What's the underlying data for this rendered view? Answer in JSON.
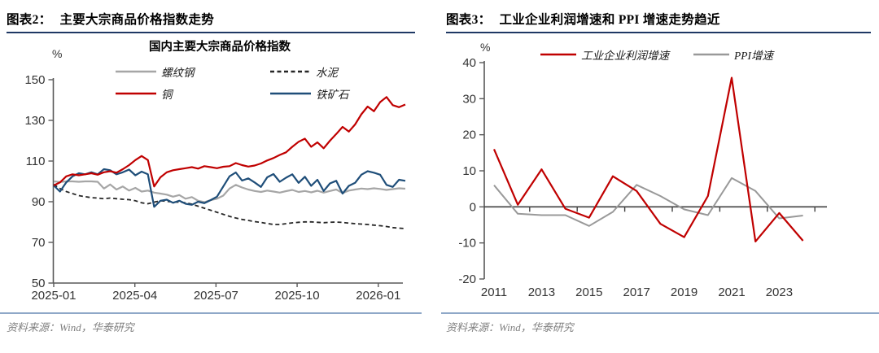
{
  "colors": {
    "copper_red": "#C00000",
    "iron_blue": "#1F4E79",
    "rebar_gray": "#A6A6A6",
    "cement_black": "#262626",
    "ppi_gray": "#999999",
    "axis": "#595959",
    "zero_axis": "#404040",
    "header_underline": "#1F3864",
    "source_divider": "#8FA8C8",
    "source_text": "#808080"
  },
  "fig2": {
    "header_label": "图表2：",
    "header_title": "主要大宗商品价格指数走势",
    "source": "资料来源：Wind，华泰研究",
    "chart_data": {
      "type": "line",
      "title": "国内主要大宗商品价格指数",
      "ylabel": "%",
      "ylim": [
        50,
        150
      ],
      "yticks": [
        50,
        70,
        90,
        110,
        130,
        150
      ],
      "grid": false,
      "legend_position": "top",
      "xticks": [
        {
          "label": "2025-01",
          "pos": 0.0
        },
        {
          "label": "2025-04",
          "pos": 0.2308
        },
        {
          "label": "2025-07",
          "pos": 0.4615
        },
        {
          "label": "2025-10",
          "pos": 0.6923
        },
        {
          "label": "2026-01",
          "pos": 0.9231
        }
      ],
      "x_range_note": "weekly samples, 2025-01 to 2026-01",
      "series": [
        {
          "name": "螺纹钢",
          "color": "#A6A6A6",
          "dash": "",
          "width": 2.2,
          "values": [
            100,
            99.7,
            100,
            100,
            99.8,
            100,
            100,
            99.8,
            96.5,
            98.5,
            96,
            97.5,
            95.5,
            96.8,
            95,
            95.5,
            94.5,
            94,
            93.5,
            92.5,
            93.3,
            91.5,
            92.3,
            90.5,
            89.8,
            90.8,
            91.5,
            93,
            96.5,
            98.3,
            97,
            96,
            95.3,
            94.8,
            95.5,
            95,
            94.5,
            95.2,
            95.8,
            94.8,
            95.3,
            94.6,
            95.4,
            94.5,
            95.3,
            96,
            94.3,
            95.5,
            96,
            96.5,
            96.2,
            96.6,
            96.3,
            95.8,
            96.2,
            96.6,
            96.4
          ]
        },
        {
          "name": "水泥",
          "color": "#262626",
          "dash": "5,3.5",
          "width": 1.8,
          "values": [
            98.5,
            96.5,
            95,
            94,
            93,
            92.5,
            92,
            91.8,
            91.5,
            91.8,
            91.5,
            91.2,
            91,
            90.5,
            89.5,
            89,
            89.8,
            90.5,
            90.2,
            89.8,
            89.8,
            89.5,
            88.8,
            87.8,
            86.8,
            85.8,
            84.8,
            83.8,
            82.8,
            82,
            81.3,
            80.8,
            80.2,
            79.8,
            79.3,
            78.8,
            78.8,
            79.2,
            79.6,
            79.9,
            80.1,
            80.1,
            79.9,
            79.7,
            79.9,
            80,
            79.8,
            79.5,
            79.2,
            79,
            78.8,
            78.5,
            78.2,
            77.8,
            77.3,
            77,
            76.8
          ]
        },
        {
          "name": "铜",
          "color": "#C00000",
          "dash": "",
          "width": 2.2,
          "values": [
            98,
            99.5,
            102.5,
            103.5,
            103,
            103.5,
            104,
            103.3,
            104.5,
            105,
            104.3,
            106,
            108,
            110.5,
            112.5,
            110.5,
            97.5,
            102,
            104.5,
            105.5,
            106,
            106.5,
            107,
            106.3,
            107.5,
            107,
            106.5,
            107.2,
            107.5,
            109,
            108,
            107.3,
            107.8,
            108.8,
            110.3,
            111.5,
            113,
            114.3,
            117,
            119.5,
            121,
            117,
            119.2,
            116.3,
            120,
            123.3,
            126.8,
            124.5,
            128,
            133,
            136.8,
            134.5,
            139,
            141.5,
            137.5,
            136.5,
            137.8
          ]
        },
        {
          "name": "铁矿石",
          "color": "#1F4E79",
          "dash": "",
          "width": 2.2,
          "values": [
            98,
            95,
            99.5,
            102.5,
            104,
            103.5,
            104.5,
            103.5,
            106,
            105.5,
            103.5,
            104.5,
            105.8,
            103,
            104.8,
            103.5,
            87.5,
            90.5,
            91,
            89.5,
            90.5,
            89,
            88.5,
            90,
            89.3,
            90.8,
            92.5,
            97.5,
            102.5,
            104.4,
            100.4,
            101.5,
            99.5,
            97.3,
            102,
            103.6,
            99.8,
            101.8,
            103.5,
            99.3,
            102.3,
            97.8,
            100.8,
            95.3,
            99,
            100.3,
            94,
            97.8,
            99.3,
            103.3,
            105,
            104.3,
            103.3,
            98.3,
            97.3,
            100.8,
            100.3
          ]
        }
      ]
    }
  },
  "fig3": {
    "header_label": "图表3：",
    "header_title": "工业企业利润增速和 PPI 增速走势趋近",
    "source": "资料来源：Wind，华泰研究",
    "chart_data": {
      "type": "line",
      "title": "",
      "ylabel": "%",
      "ylim": [
        -20,
        40
      ],
      "yticks": [
        -20,
        -10,
        0,
        10,
        20,
        30,
        40
      ],
      "grid": false,
      "legend_position": "top",
      "zero_axis": true,
      "categories": [
        "2011",
        "2012",
        "2013",
        "2014",
        "2015",
        "2016",
        "2017",
        "2018",
        "2019",
        "2020",
        "2021",
        "2022",
        "2023",
        "2024"
      ],
      "xtick_labels": [
        "2011",
        "2013",
        "2015",
        "2017",
        "2019",
        "2021",
        "2023"
      ],
      "series": [
        {
          "name": "工业企业利润增速",
          "color": "#C00000",
          "dash": "",
          "width": 2.2,
          "values": [
            16,
            0.6,
            10.4,
            -0.5,
            -3.0,
            8.5,
            4.4,
            -4.7,
            -8.4,
            3.0,
            35.8,
            -9.6,
            -1.7,
            -9.4
          ]
        },
        {
          "name": "PPI增速",
          "color": "#999999",
          "dash": "",
          "width": 2.0,
          "values": [
            6.0,
            -1.9,
            -2.3,
            -2.3,
            -5.3,
            -1.4,
            6.1,
            3.0,
            -0.7,
            -2.3,
            8.0,
            4.4,
            -3.2,
            -2.4
          ]
        }
      ]
    }
  }
}
